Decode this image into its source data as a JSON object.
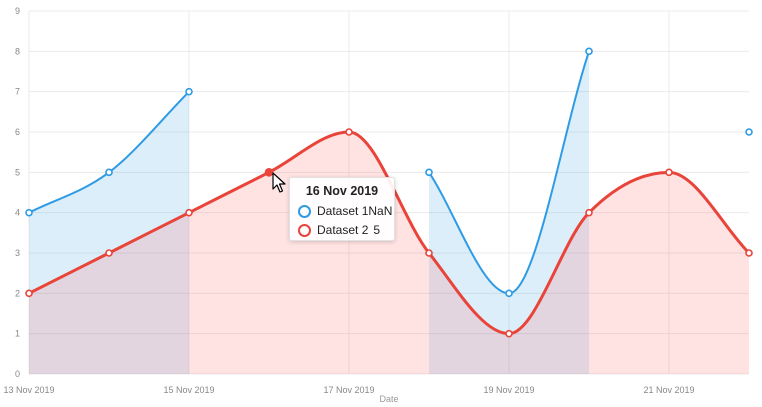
{
  "chart_data": {
    "type": "area",
    "xlabel": "Date",
    "x_ticks": [
      "13 Nov 2019",
      "15 Nov 2019",
      "17 Nov 2019",
      "19 Nov 2019",
      "21 Nov 2019"
    ],
    "x_range": [
      "13 Nov 2019",
      "22 Nov 2019"
    ],
    "ylim": [
      0,
      9
    ],
    "y_ticks": [
      0,
      1,
      2,
      3,
      4,
      5,
      6,
      7,
      8,
      9
    ],
    "grid": true,
    "series": [
      {
        "name": "Dataset 1",
        "color": "#2e9be4",
        "fill": "rgba(46, 155, 228, 0.17)",
        "points": [
          {
            "x": "13 Nov 2019",
            "y": 4
          },
          {
            "x": "14 Nov 2019",
            "y": 5
          },
          {
            "x": "15 Nov 2019",
            "y": 7
          },
          {
            "x": "16 Nov 2019",
            "y": null
          },
          {
            "x": "17 Nov 2019",
            "y": null
          },
          {
            "x": "18 Nov 2019",
            "y": 5
          },
          {
            "x": "19 Nov 2019",
            "y": 2
          },
          {
            "x": "20 Nov 2019",
            "y": 8
          },
          {
            "x": "21 Nov 2019",
            "y": null
          },
          {
            "x": "22 Nov 2019",
            "y": 6
          }
        ]
      },
      {
        "name": "Dataset 2",
        "color": "#e8443a",
        "fill": "rgba(255, 99, 100, 0.18)",
        "points": [
          {
            "x": "13 Nov 2019",
            "y": 2
          },
          {
            "x": "14 Nov 2019",
            "y": 3
          },
          {
            "x": "15 Nov 2019",
            "y": 4
          },
          {
            "x": "16 Nov 2019",
            "y": 5
          },
          {
            "x": "17 Nov 2019",
            "y": 6
          },
          {
            "x": "18 Nov 2019",
            "y": 3
          },
          {
            "x": "19 Nov 2019",
            "y": 1
          },
          {
            "x": "20 Nov 2019",
            "y": 4
          },
          {
            "x": "21 Nov 2019",
            "y": 5
          },
          {
            "x": "22 Nov 2019",
            "y": 3
          }
        ]
      }
    ],
    "tooltip": {
      "title": "16 Nov 2019",
      "rows": [
        {
          "label": "Dataset 1",
          "value": "NaN",
          "color": "#2e9be4"
        },
        {
          "label": "Dataset 2",
          "value": "5",
          "color": "#e8443a"
        }
      ]
    }
  }
}
